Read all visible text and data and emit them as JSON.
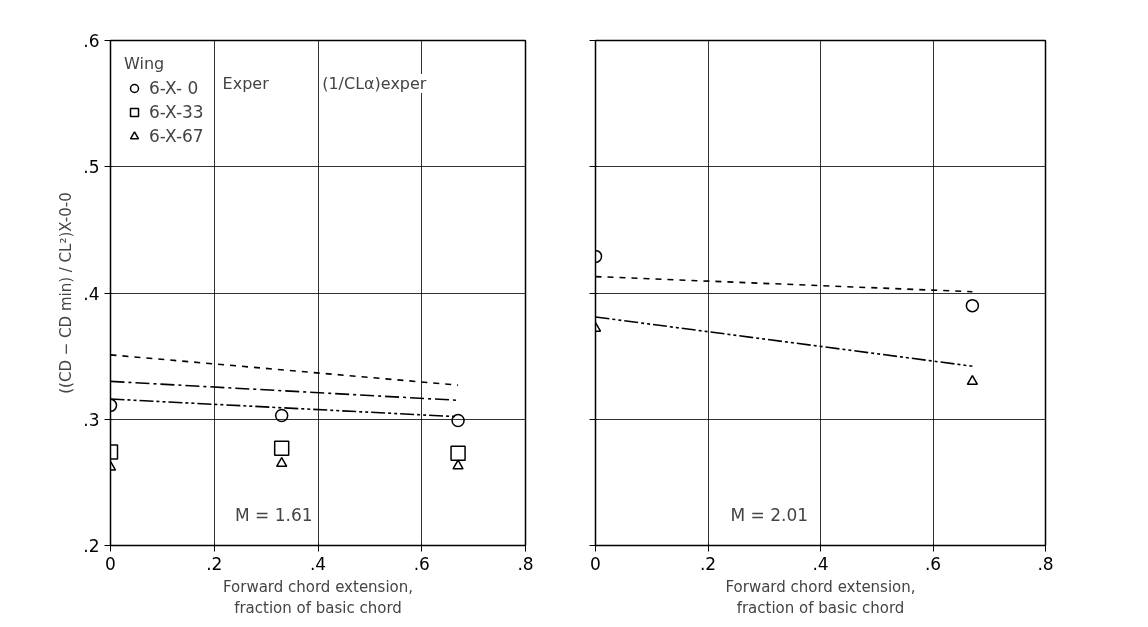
{
  "chart_data": [
    {
      "type": "scatter",
      "xlabel": "Forward chord extension,\nfraction of basic chord",
      "ylabel": "((CD − CD min) / CL²)X-0-0",
      "xlim": [
        0,
        0.8
      ],
      "xticks": [
        {
          "value": 0,
          "label": "0"
        },
        {
          "value": 0.2,
          "label": ".2"
        },
        {
          "value": 0.4,
          "label": ".4"
        },
        {
          "value": 0.6,
          "label": ".6"
        },
        {
          "value": 0.8,
          "label": ".8"
        }
      ],
      "ylim": [
        0.2,
        0.6
      ],
      "yticks": [
        {
          "value": 0.2,
          "label": ".2"
        },
        {
          "value": 0.3,
          "label": ".3"
        },
        {
          "value": 0.4,
          "label": ".4"
        },
        {
          "value": 0.5,
          "label": ".5"
        },
        {
          "value": 0.6,
          "label": ".6"
        }
      ],
      "grid": true,
      "legend": "top left",
      "legend_title": "Wing",
      "annotations": [
        "Exper",
        "(1/CLα)exper",
        "M = 1.61"
      ],
      "series": [
        {
          "name": "6-X- 0",
          "marker": "circle",
          "color": "#000000",
          "x": [
            0,
            0.33,
            0.67
          ],
          "values": [
            0.311,
            0.303,
            0.299
          ]
        },
        {
          "name": "6-X-33",
          "marker": "square",
          "color": "#000000",
          "x": [
            0,
            0.33,
            0.67
          ],
          "values": [
            0.274,
            0.277,
            0.273
          ]
        },
        {
          "name": "6-X-67",
          "marker": "triangle",
          "color": "#000000",
          "x": [
            0,
            0.33,
            0.67
          ],
          "values": [
            0.262,
            0.265,
            0.263
          ]
        },
        {
          "type": "line",
          "line_style": "dashed",
          "color": "#000000",
          "x": [
            0,
            0.67
          ],
          "values": [
            0.351,
            0.327
          ]
        },
        {
          "type": "line",
          "line_style": "dashdot",
          "color": "#000000",
          "x": [
            0,
            0.67
          ],
          "values": [
            0.33,
            0.315
          ]
        },
        {
          "type": "line",
          "line_style": "dashdotdot",
          "color": "#000000",
          "x": [
            0,
            0.67
          ],
          "values": [
            0.316,
            0.302
          ]
        }
      ]
    },
    {
      "type": "scatter",
      "xlabel": "Forward chord extension,\nfraction of basic chord",
      "xlim": [
        0,
        0.8
      ],
      "xticks": [
        {
          "value": 0,
          "label": "0"
        },
        {
          "value": 0.2,
          "label": ".2"
        },
        {
          "value": 0.4,
          "label": ".4"
        },
        {
          "value": 0.6,
          "label": ".6"
        },
        {
          "value": 0.8,
          "label": ".8"
        }
      ],
      "ylim": [
        0.2,
        0.6
      ],
      "yticks": [
        0.2,
        0.3,
        0.4,
        0.5,
        0.6
      ],
      "tick_labels": "x",
      "grid": true,
      "annotations": [
        "M = 2.01"
      ],
      "series": [
        {
          "marker": "circle",
          "color": "#000000",
          "x": [
            0,
            0.67
          ],
          "values": [
            0.429,
            0.39
          ]
        },
        {
          "marker": "triangle",
          "color": "#000000",
          "x": [
            0,
            0.67
          ],
          "values": [
            0.372,
            0.33
          ]
        },
        {
          "type": "line",
          "line_style": "dashed",
          "color": "#000000",
          "x": [
            0,
            0.67
          ],
          "values": [
            0.413,
            0.401
          ]
        },
        {
          "type": "line",
          "line_style": "dashdotdot",
          "color": "#000000",
          "x": [
            0,
            0.67
          ],
          "values": [
            0.381,
            0.342
          ]
        }
      ]
    }
  ]
}
